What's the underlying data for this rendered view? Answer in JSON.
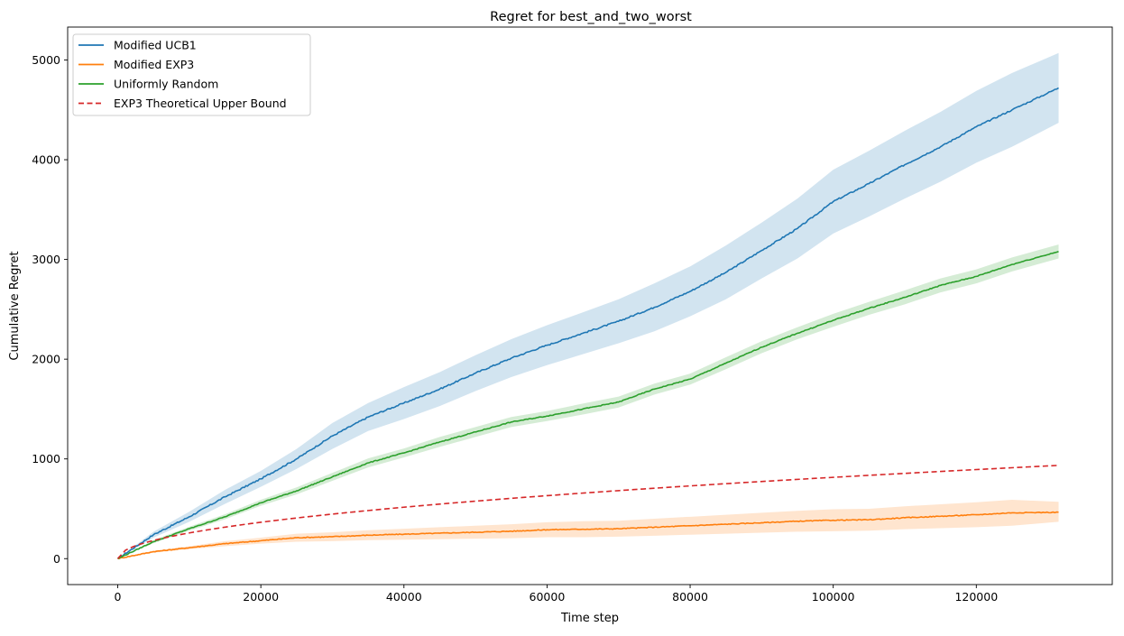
{
  "chart_data": {
    "type": "line",
    "title": "Regret for best_and_two_worst",
    "xlabel": "Time step",
    "ylabel": "Cumulative Regret",
    "xlim": [
      -7000,
      139000
    ],
    "ylim": [
      -260,
      5330
    ],
    "x_ticks": [
      0,
      20000,
      40000,
      60000,
      80000,
      100000,
      120000
    ],
    "x_tick_labels": [
      "0",
      "20000",
      "40000",
      "60000",
      "80000",
      "100000",
      "120000"
    ],
    "y_ticks": [
      0,
      1000,
      2000,
      3000,
      4000,
      5000
    ],
    "y_tick_labels": [
      "0",
      "1000",
      "2000",
      "3000",
      "4000",
      "5000"
    ],
    "grid": false,
    "legend_position": "upper-left",
    "series": [
      {
        "name": "Modified UCB1",
        "color": "#1f77b4",
        "band_color": "#1f77b4",
        "style": "solid",
        "x": [
          0,
          5000,
          10000,
          15000,
          20000,
          25000,
          30000,
          35000,
          40000,
          45000,
          50000,
          55000,
          60000,
          65000,
          70000,
          75000,
          80000,
          85000,
          90000,
          95000,
          100000,
          105000,
          110000,
          115000,
          120000,
          125000,
          131500
        ],
        "y": [
          0,
          240,
          420,
          620,
          800,
          1000,
          1230,
          1420,
          1560,
          1700,
          1860,
          2010,
          2140,
          2260,
          2380,
          2520,
          2680,
          2870,
          3090,
          3310,
          3580,
          3760,
          3950,
          4130,
          4330,
          4500,
          4720
        ],
        "lower": [
          0,
          210,
          370,
          550,
          720,
          900,
          1100,
          1280,
          1400,
          1530,
          1680,
          1820,
          1940,
          2050,
          2160,
          2280,
          2430,
          2600,
          2810,
          3010,
          3260,
          3430,
          3610,
          3780,
          3970,
          4130,
          4370
        ],
        "upper": [
          0,
          270,
          470,
          690,
          880,
          1100,
          1360,
          1560,
          1720,
          1870,
          2040,
          2200,
          2340,
          2470,
          2600,
          2760,
          2930,
          3140,
          3370,
          3610,
          3900,
          4090,
          4290,
          4480,
          4690,
          4870,
          5070
        ]
      },
      {
        "name": "Modified EXP3",
        "color": "#ff7f0e",
        "band_color": "#ff7f0e",
        "style": "solid",
        "x": [
          0,
          5000,
          10000,
          15000,
          20000,
          25000,
          30000,
          35000,
          40000,
          45000,
          50000,
          55000,
          60000,
          65000,
          70000,
          75000,
          80000,
          85000,
          90000,
          95000,
          100000,
          105000,
          110000,
          115000,
          120000,
          125000,
          131500
        ],
        "y": [
          0,
          70,
          110,
          150,
          180,
          210,
          220,
          235,
          245,
          255,
          265,
          275,
          290,
          295,
          300,
          315,
          330,
          345,
          360,
          375,
          385,
          390,
          410,
          425,
          440,
          460,
          465
        ],
        "lower": [
          0,
          60,
          95,
          125,
          150,
          170,
          175,
          185,
          190,
          195,
          200,
          205,
          215,
          215,
          220,
          230,
          240,
          250,
          260,
          270,
          275,
          280,
          295,
          305,
          315,
          330,
          370
        ],
        "upper": [
          0,
          80,
          125,
          175,
          210,
          250,
          265,
          285,
          300,
          315,
          330,
          345,
          365,
          375,
          380,
          400,
          420,
          440,
          460,
          480,
          495,
          500,
          525,
          545,
          565,
          590,
          570
        ]
      },
      {
        "name": "Uniformly Random",
        "color": "#2ca02c",
        "band_color": "#2ca02c",
        "style": "solid",
        "x": [
          0,
          5000,
          10000,
          15000,
          20000,
          25000,
          30000,
          35000,
          40000,
          45000,
          50000,
          55000,
          60000,
          65000,
          70000,
          75000,
          80000,
          85000,
          90000,
          95000,
          100000,
          105000,
          110000,
          115000,
          120000,
          125000,
          131500
        ],
        "y": [
          0,
          170,
          300,
          420,
          560,
          680,
          820,
          960,
          1060,
          1170,
          1270,
          1370,
          1430,
          1500,
          1570,
          1700,
          1800,
          1960,
          2120,
          2260,
          2390,
          2510,
          2620,
          2740,
          2830,
          2950,
          3080
        ],
        "lower": [
          0,
          155,
          280,
          395,
          530,
          645,
          780,
          915,
          1015,
          1120,
          1220,
          1320,
          1380,
          1445,
          1515,
          1645,
          1745,
          1900,
          2060,
          2200,
          2325,
          2445,
          2550,
          2670,
          2760,
          2880,
          3010
        ],
        "upper": [
          0,
          185,
          320,
          445,
          590,
          715,
          860,
          1005,
          1105,
          1220,
          1320,
          1420,
          1480,
          1555,
          1625,
          1755,
          1855,
          2020,
          2180,
          2320,
          2455,
          2575,
          2690,
          2810,
          2900,
          3020,
          3150
        ]
      },
      {
        "name": "EXP3 Theoretical Upper Bound",
        "color": "#d62728",
        "style": "dashed",
        "formula": "sqrt",
        "x_max": 131500,
        "y_end": 935
      }
    ]
  }
}
